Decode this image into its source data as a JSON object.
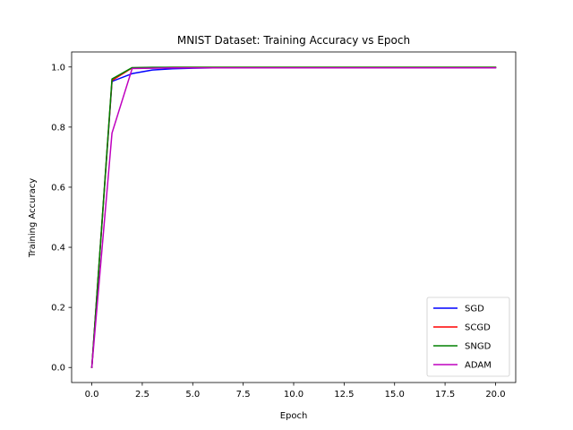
{
  "chart_data": {
    "type": "line",
    "title": "MNIST Dataset:  Training Accuracy vs Epoch",
    "xlabel": "Epoch",
    "ylabel": "Training Accuracy",
    "xlim": [
      -1,
      21
    ],
    "ylim": [
      -0.05,
      1.05
    ],
    "xticks": [
      0.0,
      2.5,
      5.0,
      7.5,
      10.0,
      12.5,
      15.0,
      17.5,
      20.0
    ],
    "xtick_labels": [
      "0.0",
      "2.5",
      "5.0",
      "7.5",
      "10.0",
      "12.5",
      "15.0",
      "17.5",
      "20.0"
    ],
    "yticks": [
      0.0,
      0.2,
      0.4,
      0.6,
      0.8,
      1.0
    ],
    "ytick_labels": [
      "0.0",
      "0.2",
      "0.4",
      "0.6",
      "0.8",
      "1.0"
    ],
    "grid": false,
    "legend_position": "lower-right",
    "x": [
      0,
      1,
      2,
      3,
      4,
      5,
      6,
      7,
      8,
      9,
      10,
      11,
      12,
      13,
      14,
      15,
      16,
      17,
      18,
      19,
      20
    ],
    "series": [
      {
        "name": "SGD",
        "color": "#0000ff",
        "values": [
          0.0,
          0.952,
          0.978,
          0.99,
          0.994,
          0.996,
          0.997,
          0.998,
          0.998,
          0.998,
          0.998,
          0.998,
          0.998,
          0.998,
          0.998,
          0.998,
          0.998,
          0.998,
          0.998,
          0.998,
          0.998
        ]
      },
      {
        "name": "SCGD",
        "color": "#ff0000",
        "values": [
          0.0,
          0.955,
          0.997,
          0.998,
          0.999,
          0.999,
          0.999,
          0.999,
          0.999,
          0.999,
          0.999,
          0.999,
          0.999,
          0.999,
          0.999,
          0.999,
          0.999,
          0.999,
          0.999,
          0.999,
          0.999
        ]
      },
      {
        "name": "SNGD",
        "color": "#008000",
        "values": [
          0.0,
          0.96,
          0.998,
          0.999,
          0.999,
          0.999,
          0.999,
          0.999,
          0.999,
          0.999,
          0.999,
          0.999,
          0.999,
          0.999,
          0.999,
          0.999,
          0.999,
          0.999,
          0.999,
          0.999,
          0.999
        ]
      },
      {
        "name": "ADAM",
        "color": "#bf00bf",
        "values": [
          0.0,
          0.78,
          0.995,
          0.996,
          0.997,
          0.997,
          0.997,
          0.997,
          0.997,
          0.997,
          0.997,
          0.997,
          0.997,
          0.997,
          0.997,
          0.997,
          0.997,
          0.997,
          0.997,
          0.997,
          0.997
        ]
      }
    ]
  }
}
